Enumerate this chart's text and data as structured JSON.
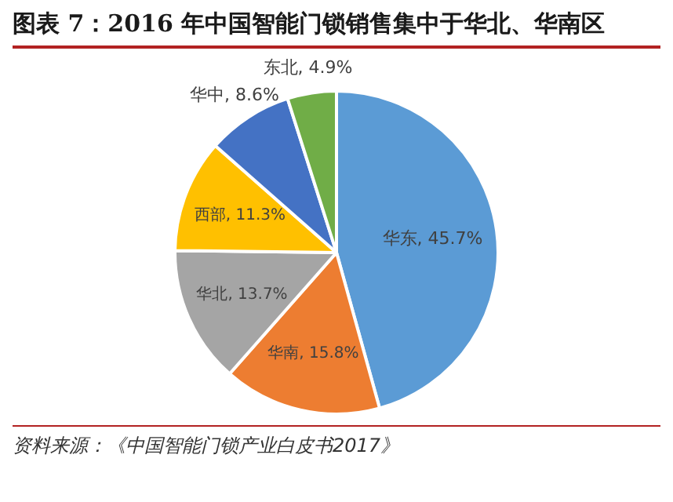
{
  "chart_data": {
    "type": "pie",
    "title": "图表 7：2016 年中国智能门锁销售集中于华北、华南区",
    "categories": [
      "华东",
      "华南",
      "华北",
      "西部",
      "华中",
      "东北"
    ],
    "values": [
      45.7,
      15.8,
      13.7,
      11.3,
      8.6,
      4.9
    ],
    "colors": [
      "#5b9bd5",
      "#ed7d31",
      "#a5a5a5",
      "#ffc000",
      "#4472c4",
      "#70ad47"
    ],
    "value_labels": [
      "45.7%",
      "15.8%",
      "13.7%",
      "11.3%",
      "8.6%",
      "4.9%"
    ],
    "legend": false,
    "annotations": [
      "资料来源：《中国智能门锁产业白皮书2017》"
    ]
  }
}
